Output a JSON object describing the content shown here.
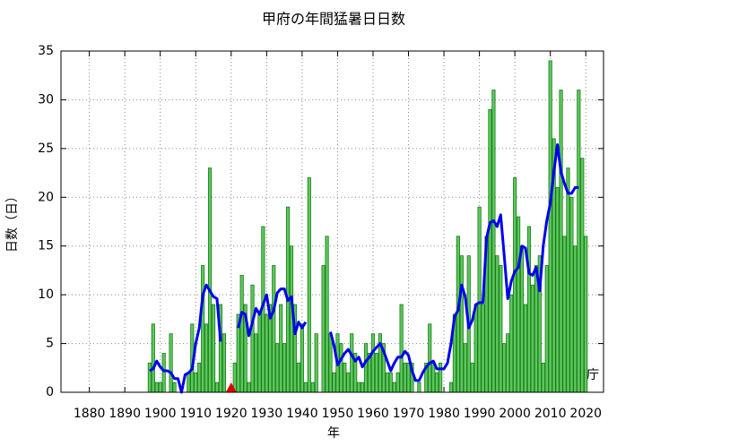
{
  "chart_data": {
    "type": "bar",
    "title": "甲府の年間猛暑日日数",
    "xlabel": "年",
    "ylabel": "日数（日）",
    "annotation": "気象庁",
    "x": [
      1897,
      1898,
      1899,
      1900,
      1901,
      1902,
      1903,
      1904,
      1905,
      1906,
      1907,
      1908,
      1909,
      1910,
      1911,
      1912,
      1913,
      1914,
      1915,
      1916,
      1917,
      1918,
      1919,
      1920,
      1921,
      1922,
      1923,
      1924,
      1925,
      1926,
      1927,
      1928,
      1929,
      1930,
      1931,
      1932,
      1933,
      1934,
      1935,
      1936,
      1937,
      1938,
      1939,
      1940,
      1941,
      1942,
      1943,
      1944,
      1945,
      1946,
      1947,
      1948,
      1949,
      1950,
      1951,
      1952,
      1953,
      1954,
      1955,
      1956,
      1957,
      1958,
      1959,
      1960,
      1961,
      1962,
      1963,
      1964,
      1965,
      1966,
      1967,
      1968,
      1969,
      1970,
      1971,
      1972,
      1973,
      1974,
      1975,
      1976,
      1977,
      1978,
      1979,
      1980,
      1981,
      1982,
      1983,
      1984,
      1985,
      1986,
      1987,
      1988,
      1989,
      1990,
      1991,
      1992,
      1993,
      1994,
      1995,
      1996,
      1997,
      1998,
      1999,
      2000,
      2001,
      2002,
      2003,
      2004,
      2005,
      2006,
      2007,
      2008,
      2009,
      2010,
      2011,
      2012,
      2013,
      2014,
      2015,
      2016,
      2017,
      2018,
      2019,
      2020
    ],
    "series": [
      {
        "color": "#5cc85c",
        "edge_color": "#1a7a1a",
        "values": [
          3,
          7,
          1,
          1,
          4,
          0,
          6,
          1,
          0,
          0,
          0,
          2,
          7,
          2,
          3,
          13,
          7,
          23,
          9,
          1,
          9,
          6,
          0,
          0,
          3,
          8,
          12,
          9,
          1,
          11,
          6,
          8,
          17,
          8,
          9,
          13,
          5,
          9,
          5,
          19,
          15,
          9,
          3,
          7,
          1,
          22,
          1,
          6,
          0,
          13,
          16,
          6,
          2,
          6,
          5,
          3,
          2,
          6,
          4,
          1,
          1,
          5,
          4,
          6,
          4,
          6,
          5,
          2,
          2,
          1,
          2,
          9,
          3,
          3,
          3,
          0,
          1,
          0,
          3,
          7,
          3,
          2,
          3,
          0,
          0,
          1,
          8,
          16,
          14,
          5,
          14,
          3,
          9,
          19,
          9,
          16,
          29,
          31,
          14,
          13,
          5,
          6,
          10,
          22,
          18,
          15,
          9,
          17,
          11,
          13,
          14,
          3,
          13,
          34,
          26,
          21,
          31,
          16,
          23,
          20,
          15,
          31,
          24,
          16
        ]
      },
      {
        "type": "line",
        "color": "#0000ee",
        "values": [
          2.2,
          2.4,
          3.2,
          2.6,
          2.2,
          2.2,
          2.0,
          1.4,
          1.4,
          0,
          1.8,
          2.0,
          2.4,
          5.0,
          6.6,
          10.0,
          11.0,
          10.4,
          9.8,
          9.6,
          5.2,
          null,
          null,
          null,
          null,
          6.6,
          8.2,
          8.0,
          5.8,
          7.2,
          8.6,
          8.0,
          9.0,
          10.0,
          7.6,
          8.4,
          10.2,
          10.6,
          10.6,
          9.4,
          9.8,
          6.0,
          7.2,
          6.6,
          7.2,
          null,
          null,
          null,
          null,
          null,
          null,
          6.2,
          4.8,
          2.8,
          3.4,
          4.0,
          4.4,
          3.8,
          3.2,
          3.6,
          2.6,
          3.2,
          3.6,
          4.2,
          4.6,
          5.0,
          4.2,
          3.2,
          2.2,
          3.0,
          3.6,
          3.6,
          4.2,
          3.8,
          2.2,
          1.2,
          1.2,
          2.0,
          2.6,
          3.0,
          3.2,
          2.4,
          2.4,
          2.4,
          3.0,
          5.0,
          7.8,
          8.4,
          11.0,
          9.8,
          6.6,
          7.4,
          9.0,
          9.2,
          9.2,
          15.8,
          17.4,
          17.6,
          17.0,
          18.2,
          14.0,
          9.6,
          11.4,
          12.4,
          12.8,
          15.0,
          14.8,
          12.2,
          12.0,
          12.8,
          10.4,
          15.0,
          17.6,
          19.4,
          22.6,
          25.4,
          22.6,
          21.4,
          20.4,
          20.4,
          21.0,
          21.0,
          null,
          null
        ]
      }
    ],
    "marker": {
      "x": 1920,
      "y": 0,
      "color": "#dd0000"
    },
    "xlim": [
      1872,
      2025
    ],
    "xticks": [
      1880,
      1890,
      1900,
      1910,
      1920,
      1930,
      1940,
      1950,
      1960,
      1970,
      1980,
      1990,
      2000,
      2010,
      2020
    ],
    "ylim": [
      0,
      35
    ],
    "yticks": [
      0,
      5,
      10,
      15,
      20,
      25,
      30,
      35
    ],
    "grid": true
  }
}
